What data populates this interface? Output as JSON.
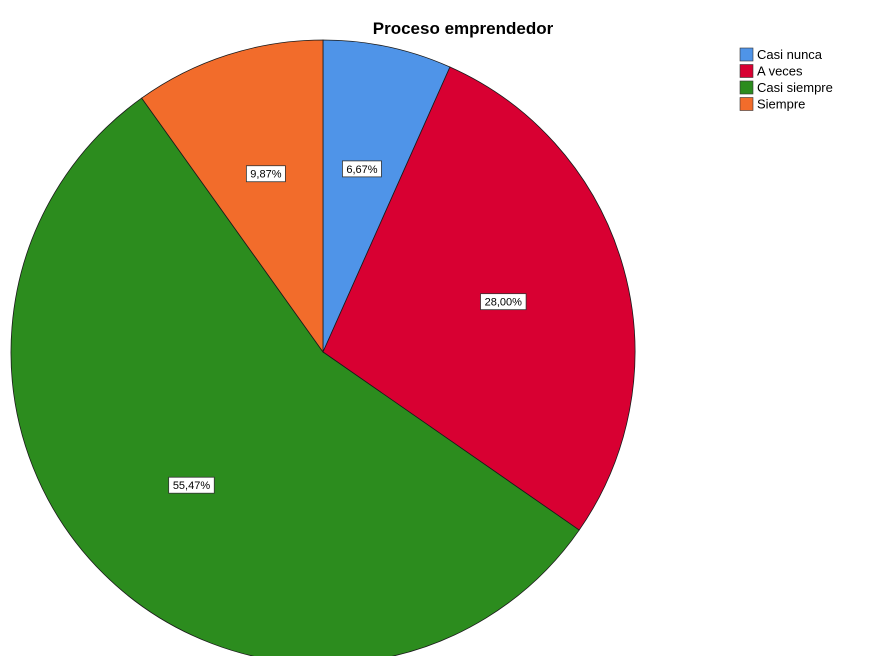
{
  "chart_data": {
    "type": "pie",
    "title": "Proceso emprendedor",
    "categories": [
      "Casi nunca",
      "A veces",
      "Casi siempre",
      "Siempre"
    ],
    "values": [
      6.67,
      28.0,
      55.47,
      9.87
    ],
    "labels": [
      "6,67%",
      "28,00%",
      "55,47%",
      "9,87%"
    ],
    "colors": [
      "#4f94e8",
      "#d80032",
      "#2c8c1e",
      "#f26c2b"
    ],
    "start_angle_deg": 0,
    "direction": "clockwise",
    "legend_position": "top-right"
  }
}
